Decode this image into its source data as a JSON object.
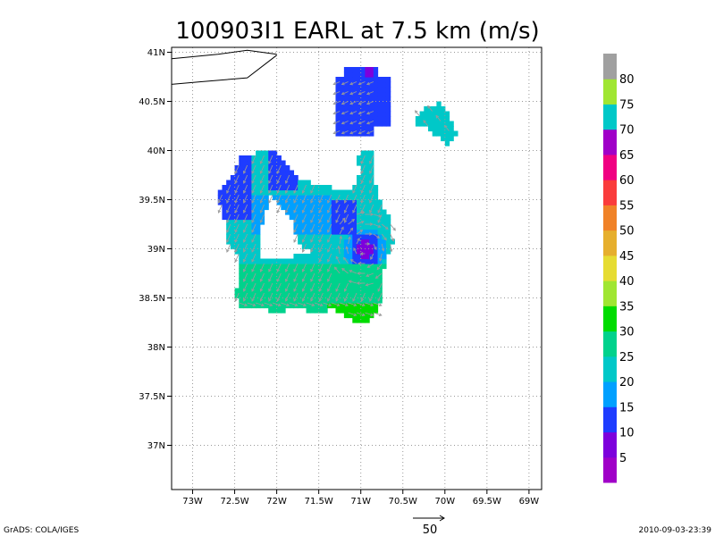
{
  "chart_data": {
    "type": "heatmap",
    "title": "100903I1 EARL at 7.5 km (m/s)",
    "xlabel": "",
    "ylabel": "",
    "x_ticks": [
      "73W",
      "72.5W",
      "72W",
      "71.5W",
      "71W",
      "70.5W",
      "70W",
      "69.5W",
      "69W"
    ],
    "y_ticks": [
      "41N",
      "40.5N",
      "40N",
      "39.5N",
      "39N",
      "38.5N",
      "38N",
      "37.5N",
      "37N"
    ],
    "xlim": [
      -73.25,
      -68.85
    ],
    "ylim": [
      36.55,
      41.05
    ],
    "grid": true,
    "colorbar": {
      "levels": [
        5,
        10,
        15,
        20,
        25,
        30,
        35,
        40,
        45,
        50,
        55,
        60,
        65,
        70,
        75,
        80
      ],
      "labels": [
        "5",
        "10",
        "15",
        "20",
        "25",
        "30",
        "35",
        "40",
        "45",
        "50",
        "55",
        "60",
        "65",
        "70",
        "75",
        "80"
      ],
      "colors": [
        "#a000c8",
        "#7d00dc",
        "#1e3cff",
        "#00a0ff",
        "#00c8c8",
        "#00d28c",
        "#00dc00",
        "#a0e632",
        "#e6dc32",
        "#e6af2d",
        "#f08228",
        "#fa3c3c",
        "#f00082",
        "#a000c8",
        "#00c8c8",
        "#a0e632",
        "#a0a0a0"
      ]
    },
    "vector_scale": {
      "label": "50"
    },
    "regions": [
      {
        "cells": [
          [
            -70.85,
            40.75
          ],
          [
            -70.95,
            40.75
          ],
          [
            -71.05,
            40.75
          ],
          [
            -71.15,
            40.7
          ],
          [
            -70.8,
            40.65
          ],
          [
            -70.9,
            40.65
          ],
          [
            -71.0,
            40.65
          ],
          [
            -71.1,
            40.65
          ],
          [
            -71.2,
            40.65
          ]
        ],
        "value": 12
      },
      {
        "cells": [
          [
            -70.9,
            40.72
          ]
        ],
        "value": 4
      },
      {
        "cells": [
          [
            -70.15,
            40.35
          ],
          [
            -70.05,
            40.3
          ],
          [
            -69.95,
            40.2
          ],
          [
            -70.25,
            40.3
          ]
        ],
        "value": 24
      }
    ],
    "footer_left": "GrADS: COLA/IGES",
    "footer_right": "2010-09-03-23:39"
  }
}
